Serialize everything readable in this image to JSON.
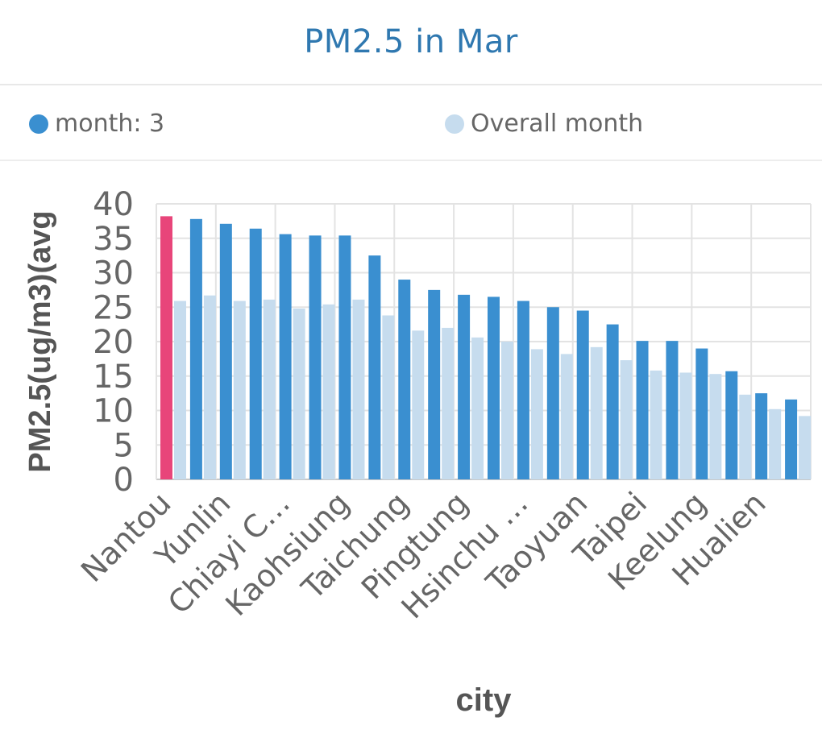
{
  "chart_data": {
    "type": "bar",
    "title": "PM2.5 in Mar",
    "xlabel": "city",
    "ylabel": "PM2.5(ug/m3)(avg",
    "ylim": [
      0,
      40
    ],
    "yticks": [
      "0",
      "5",
      "10",
      "15",
      "20",
      "25",
      "30",
      "35",
      "40"
    ],
    "grid": true,
    "legend_position": "top",
    "tick_labels": [
      "Nantou",
      "Yunlin",
      "Chiayi C…",
      "Kaohsiung",
      "Taichung",
      "Pingtung",
      "Hsinchu …",
      "Taoyuan",
      "Taipei",
      "Keelung",
      "Hualien"
    ],
    "categories_count": 22,
    "highlight_index": 0,
    "series": [
      {
        "name": "month: 3",
        "color": "#3a8fd0",
        "values": [
          38.2,
          37.8,
          37.1,
          36.4,
          35.6,
          35.4,
          35.4,
          32.5,
          29,
          27.5,
          26.8,
          26.5,
          25.9,
          25,
          24.5,
          22.5,
          20.1,
          20.1,
          19,
          15.7,
          12.5,
          11.6
        ]
      },
      {
        "name": "Overall month",
        "color": "#c6dcee",
        "values": [
          25.9,
          26.7,
          25.9,
          26.1,
          24.8,
          25.4,
          26.1,
          23.8,
          21.6,
          22,
          20.6,
          20,
          18.9,
          18.2,
          19.2,
          17.3,
          15.8,
          15.5,
          15.3,
          12.3,
          10.2,
          9.2
        ]
      }
    ],
    "highlight_color": "#e8457a"
  }
}
